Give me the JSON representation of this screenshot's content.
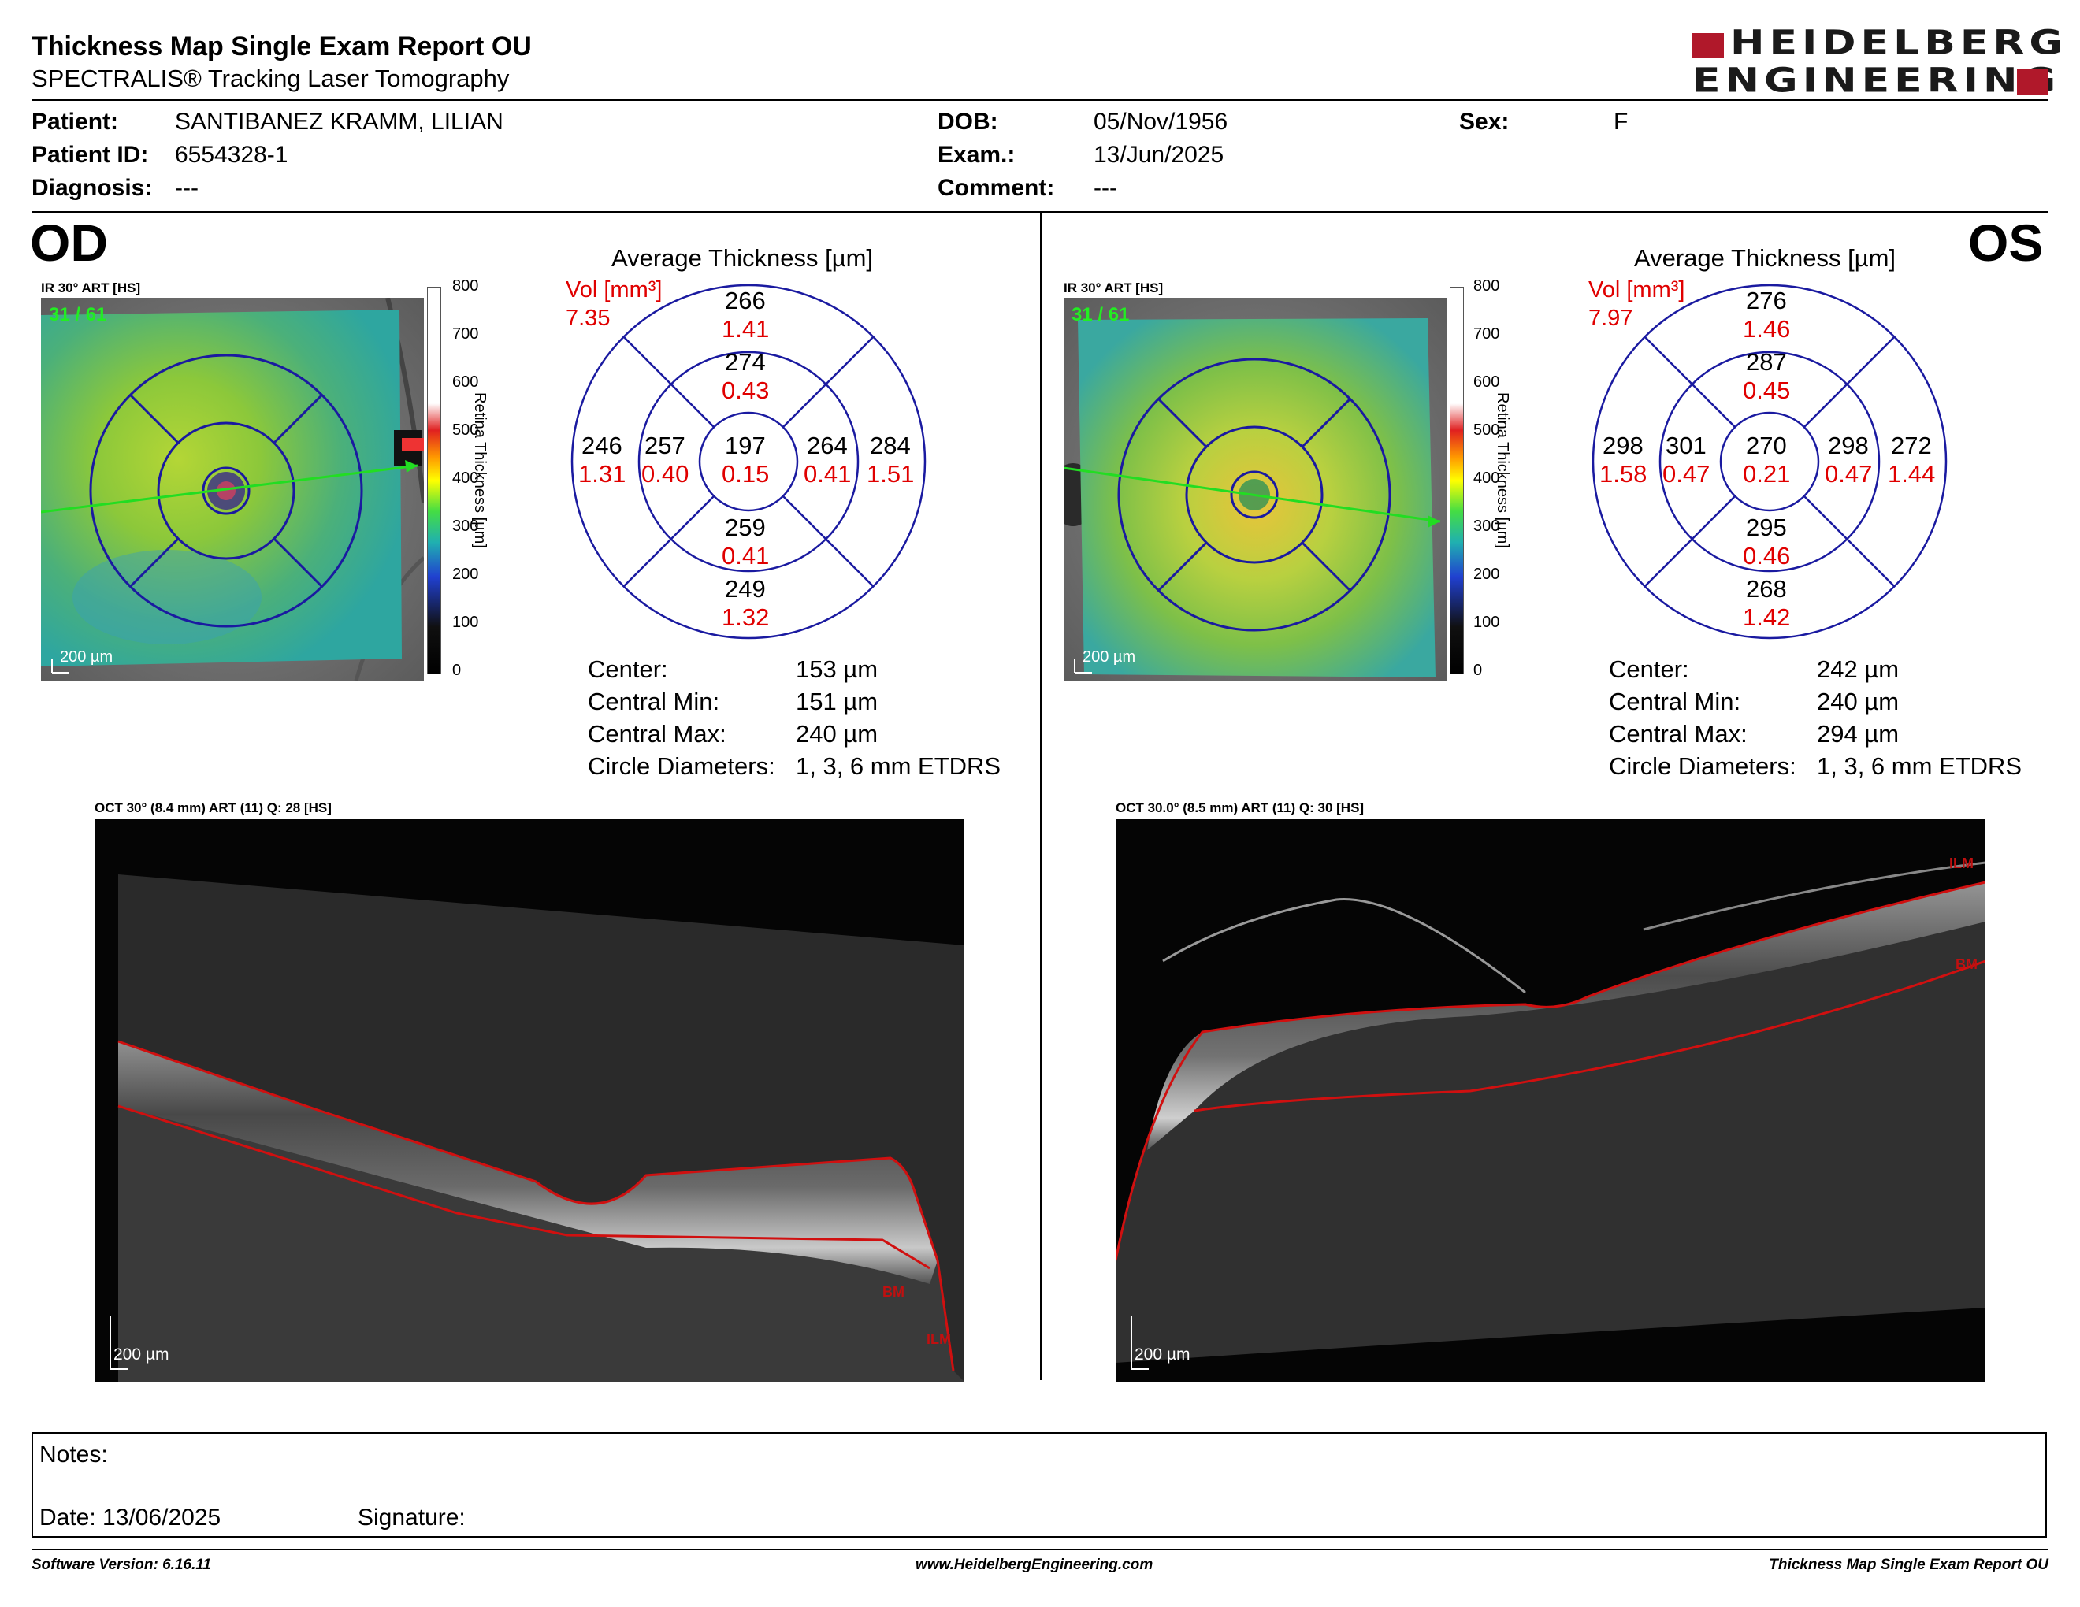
{
  "header": {
    "title": "Thickness Map Single Exam Report OU",
    "subtitle": "SPECTRALIS® Tracking Laser Tomography",
    "logo_line1": "HEIDELBERG",
    "logo_line2": "ENGINEERING"
  },
  "patient": {
    "patient_label": "Patient:",
    "patient_value": "SANTIBANEZ KRAMM, LILIAN",
    "id_label": "Patient ID:",
    "id_value": "6554328-1",
    "diagnosis_label": "Diagnosis:",
    "diagnosis_value": "---",
    "dob_label": "DOB:",
    "dob_value": "05/Nov/1956",
    "exam_label": "Exam.:",
    "exam_value": "13/Jun/2025",
    "comment_label": "Comment:",
    "comment_value": "---",
    "sex_label": "Sex:",
    "sex_value": "F"
  },
  "od": {
    "eye": "OD",
    "ir_label": "IR 30° ART [HS]",
    "frame_count": "31 / 61",
    "scale_label": "200 µm",
    "grid_title": "Average Thickness [µm]",
    "vol_label": "Vol [mm³]",
    "vol_value": "7.35",
    "sectors": {
      "outer_sup": [
        "266",
        "1.41"
      ],
      "inner_sup": [
        "274",
        "0.43"
      ],
      "outer_temp": [
        "246",
        "1.31"
      ],
      "inner_temp": [
        "257",
        "0.40"
      ],
      "center": [
        "197",
        "0.15"
      ],
      "inner_nasal": [
        "264",
        "0.41"
      ],
      "outer_nasal": [
        "284",
        "1.51"
      ],
      "inner_inf": [
        "259",
        "0.41"
      ],
      "outer_inf": [
        "249",
        "1.32"
      ]
    },
    "stats": [
      {
        "label": "Center:",
        "value": "153 µm"
      },
      {
        "label": "Central Min:",
        "value": "151 µm"
      },
      {
        "label": "Central Max:",
        "value": "240 µm"
      },
      {
        "label": "Circle Diameters:",
        "value": "1, 3, 6 mm ETDRS"
      }
    ],
    "oct_label": "OCT 30° (8.4 mm) ART (11) Q: 28 [HS]",
    "oct_scale": "200 µm",
    "oct_ilm": "ILM",
    "oct_bm": "BM"
  },
  "os": {
    "eye": "OS",
    "ir_label": "IR 30° ART [HS]",
    "frame_count": "31 / 61",
    "scale_label": "200 µm",
    "grid_title": "Average Thickness [µm]",
    "vol_label": "Vol [mm³]",
    "vol_value": "7.97",
    "sectors": {
      "outer_sup": [
        "276",
        "1.46"
      ],
      "inner_sup": [
        "287",
        "0.45"
      ],
      "outer_temp": [
        "298",
        "1.58"
      ],
      "inner_temp": [
        "301",
        "0.47"
      ],
      "center": [
        "270",
        "0.21"
      ],
      "inner_nasal": [
        "298",
        "0.47"
      ],
      "outer_nasal": [
        "272",
        "1.44"
      ],
      "inner_inf": [
        "295",
        "0.46"
      ],
      "outer_inf": [
        "268",
        "1.42"
      ]
    },
    "stats": [
      {
        "label": "Center:",
        "value": "242 µm"
      },
      {
        "label": "Central Min:",
        "value": "240 µm"
      },
      {
        "label": "Central Max:",
        "value": "294 µm"
      },
      {
        "label": "Circle Diameters:",
        "value": "1, 3, 6 mm ETDRS"
      }
    ],
    "oct_label": "OCT 30.0° (8.5 mm) ART (11) Q: 30 [HS]",
    "oct_scale": "200 µm",
    "oct_ilm": "ILM",
    "oct_bm": "BM"
  },
  "colorbar": {
    "ticks": [
      "800",
      "700",
      "600",
      "500",
      "400",
      "300",
      "200",
      "100",
      "0"
    ],
    "title": "Retina Thickness [µm]"
  },
  "notes": {
    "notes_label": "Notes:",
    "date_label": "Date: 13/06/2025",
    "signature_label": "Signature:"
  },
  "footer": {
    "left": "Software Version: 6.16.11",
    "center": "www.HeidelbergEngineering.com",
    "right": "Thickness Map Single Exam Report OU"
  },
  "colors": {
    "grid_blue": "#1a1aa0",
    "value_red": "#e00000",
    "logo_red": "#b0182a"
  }
}
